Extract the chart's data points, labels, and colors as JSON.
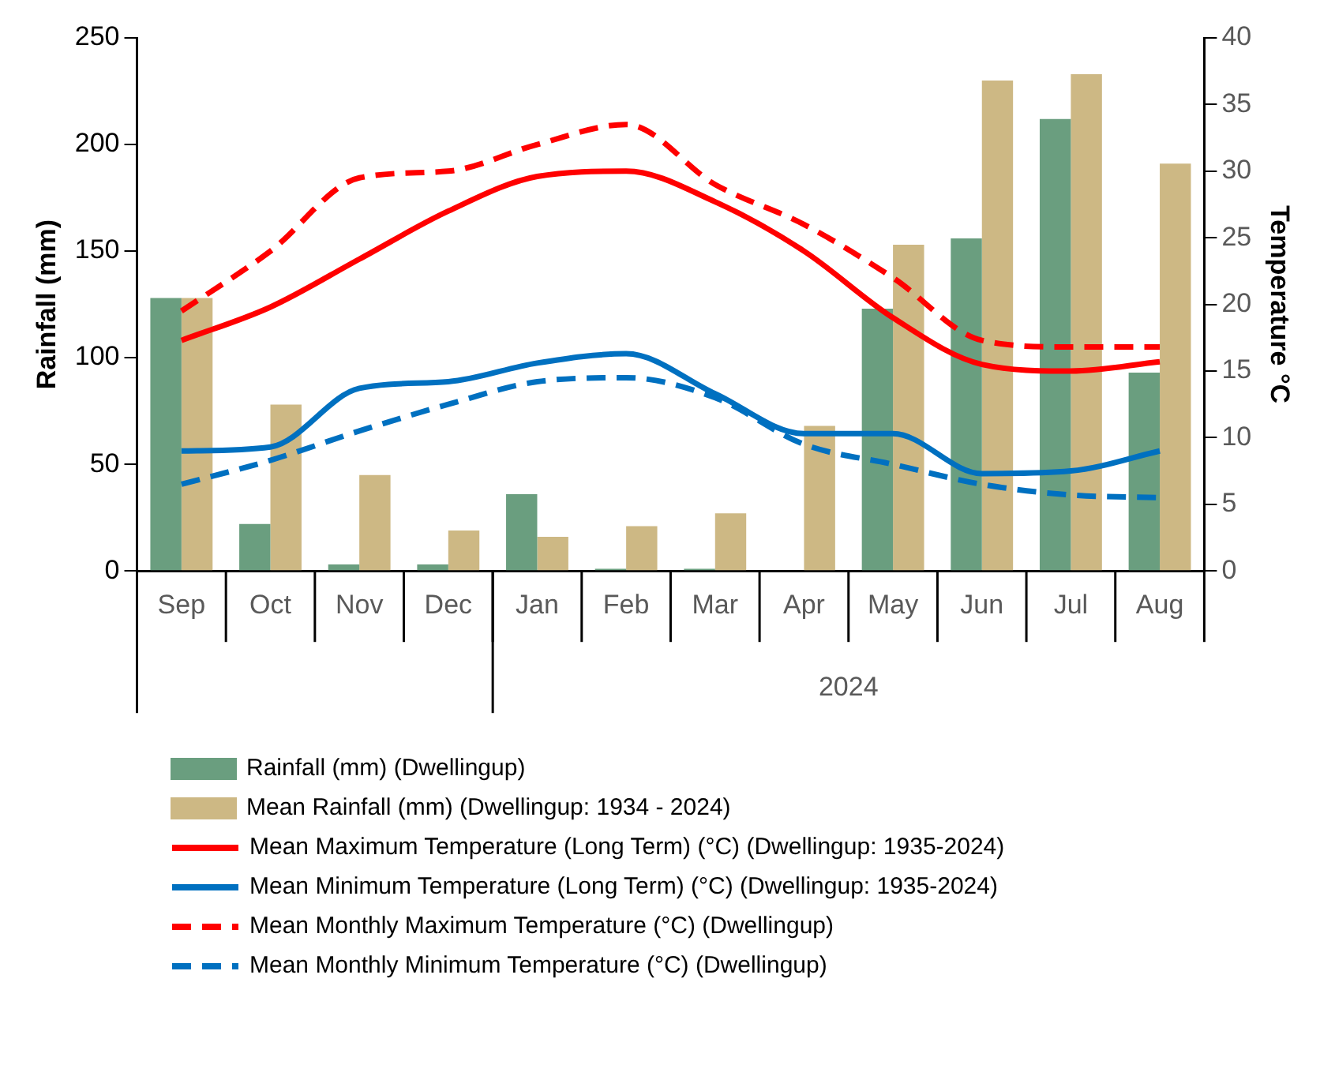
{
  "chart_data": {
    "type": "bar",
    "ylabel": "Rainfall (mm)",
    "y2label": "Temperature °C",
    "categories": [
      "Sep",
      "Oct",
      "Nov",
      "Dec",
      "Jan",
      "Feb",
      "Mar",
      "Apr",
      "May",
      "Jun",
      "Jul",
      "Aug"
    ],
    "annotations": [
      "2024"
    ],
    "ylim": [
      0,
      250
    ],
    "yticks": [
      0,
      50,
      100,
      150,
      200,
      250
    ],
    "y2lim": [
      0,
      40
    ],
    "y2ticks": [
      0,
      5,
      10,
      15,
      20,
      25,
      30,
      35,
      40
    ],
    "grid": false,
    "legend": "bottom",
    "marker": "none",
    "series": [
      {
        "name": "Rainfall (mm) (Dwellingup)",
        "color": "#6a9e7f",
        "values": [
          128,
          22,
          3,
          3,
          36,
          1,
          1,
          null,
          123,
          156,
          212,
          93
        ]
      },
      {
        "name": "Mean Rainfall (mm) (Dwellingup: 1934 - 2024)",
        "color": "#cdb884",
        "values": [
          128,
          78,
          45,
          19,
          16,
          21,
          27,
          68,
          153,
          230,
          233,
          191
        ]
      },
      {
        "name": "Mean Maximum Temperature (Long Term) (°C) (Dwellingup: 1935-2024)",
        "type": "line",
        "axis": "y2",
        "color": "#ff0000",
        "line_style": "solid",
        "values": [
          17.3,
          19.8,
          23.4,
          27,
          29.6,
          30,
          27.7,
          24,
          19,
          15.5,
          15,
          15.7
        ]
      },
      {
        "name": "Mean Minimum Temperature (Long Term) (°C) (Dwellingup: 1935-2024)",
        "type": "line",
        "axis": "y2",
        "color": "#0070c0",
        "line_style": "solid",
        "values": [
          9,
          9.3,
          13.7,
          14.2,
          15.6,
          16.3,
          13.3,
          10.3,
          10.3,
          7.3,
          7.5,
          9
        ]
      },
      {
        "name": "Mean Monthly Maximum Temperature (°C) (Dwellingup)",
        "type": "line",
        "axis": "y2",
        "color": "#ff0000",
        "line_style": "dashed",
        "values": [
          19.5,
          24,
          29.5,
          30,
          32,
          33.5,
          29,
          26,
          22,
          17.3,
          16.8,
          16.8
        ]
      },
      {
        "name": "Mean Monthly Minimum Temperature (°C) (Dwellingup)",
        "type": "line",
        "axis": "y2",
        "color": "#0070c0",
        "line_style": "dashed",
        "values": [
          6.5,
          8.3,
          10.5,
          12.5,
          14.2,
          14.5,
          13,
          9.5,
          8,
          6.5,
          5.7,
          5.5
        ]
      }
    ]
  }
}
